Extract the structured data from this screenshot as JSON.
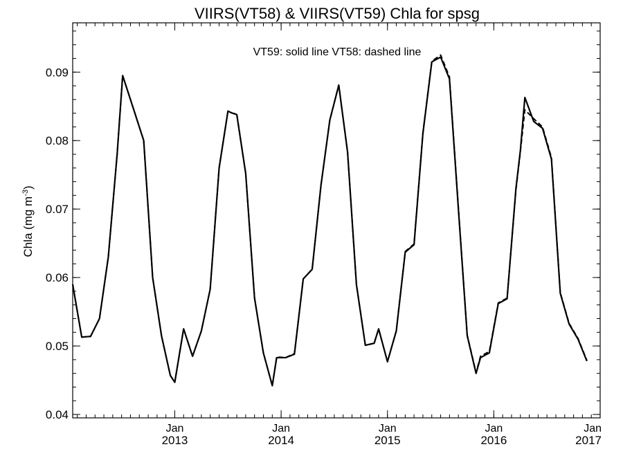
{
  "chart_data": {
    "type": "line",
    "title": "VIIRS(VT58) & VIIRS(VT59)  Chla for spsg",
    "annotation": "VT59: solid line   VT58: dashed line",
    "ylabel": {
      "base": "Chla (mg m",
      "sup": "-3",
      "close": ")"
    },
    "xlabel": "",
    "xlim": [
      2012.04,
      2017.0
    ],
    "ylim": [
      0.0395,
      0.0972
    ],
    "y_ticks": [
      0.04,
      0.05,
      0.06,
      0.07,
      0.08,
      0.09
    ],
    "y_tick_labels": [
      "0.04",
      "0.05",
      "0.06",
      "0.07",
      "0.08",
      "0.09"
    ],
    "y_minor_step": 0.002,
    "x_ticks": [
      {
        "x": 2013.0,
        "line1": "Jan",
        "line2": "2013"
      },
      {
        "x": 2014.0,
        "line1": "Jan",
        "line2": "2014"
      },
      {
        "x": 2015.0,
        "line1": "Jan",
        "line2": "2015"
      },
      {
        "x": 2016.0,
        "line1": "Jan",
        "line2": "2016"
      },
      {
        "x": 2017.0,
        "line1": "Jan",
        "line2": "2017"
      }
    ],
    "x_minor_step": 0.0833333,
    "grid": false,
    "series": [
      {
        "name": "VT59",
        "style": "solid",
        "color": "#000000",
        "points": [
          [
            2012.04,
            0.059
          ],
          [
            2012.125,
            0.0513
          ],
          [
            2012.208,
            0.0514
          ],
          [
            2012.292,
            0.054
          ],
          [
            2012.375,
            0.063
          ],
          [
            2012.458,
            0.078
          ],
          [
            2012.51,
            0.0895
          ],
          [
            2012.625,
            0.084
          ],
          [
            2012.708,
            0.08
          ],
          [
            2012.792,
            0.06
          ],
          [
            2012.875,
            0.0515
          ],
          [
            2012.958,
            0.0457
          ],
          [
            2013.0,
            0.0447
          ],
          [
            2013.083,
            0.0525
          ],
          [
            2013.167,
            0.0485
          ],
          [
            2013.25,
            0.0522
          ],
          [
            2013.333,
            0.0583
          ],
          [
            2013.417,
            0.076
          ],
          [
            2013.5,
            0.0843
          ],
          [
            2013.542,
            0.084
          ],
          [
            2013.583,
            0.0838
          ],
          [
            2013.667,
            0.0752
          ],
          [
            2013.75,
            0.057
          ],
          [
            2013.833,
            0.049
          ],
          [
            2013.917,
            0.0442
          ],
          [
            2013.958,
            0.0483
          ],
          [
            2014.042,
            0.0483
          ],
          [
            2014.125,
            0.0488
          ],
          [
            2014.208,
            0.0598
          ],
          [
            2014.292,
            0.0612
          ],
          [
            2014.375,
            0.0735
          ],
          [
            2014.458,
            0.083
          ],
          [
            2014.542,
            0.0881
          ],
          [
            2014.625,
            0.0783
          ],
          [
            2014.708,
            0.059
          ],
          [
            2014.792,
            0.0501
          ],
          [
            2014.875,
            0.0504
          ],
          [
            2014.917,
            0.0525
          ],
          [
            2015.0,
            0.0477
          ],
          [
            2015.083,
            0.0522
          ],
          [
            2015.167,
            0.0637
          ],
          [
            2015.25,
            0.0648
          ],
          [
            2015.333,
            0.081
          ],
          [
            2015.417,
            0.0915
          ],
          [
            2015.5,
            0.0922
          ],
          [
            2015.583,
            0.089
          ],
          [
            2015.667,
            0.07
          ],
          [
            2015.75,
            0.0515
          ],
          [
            2015.833,
            0.046
          ],
          [
            2015.875,
            0.0483
          ],
          [
            2015.958,
            0.049
          ],
          [
            2016.042,
            0.0562
          ],
          [
            2016.125,
            0.0569
          ],
          [
            2016.208,
            0.073
          ],
          [
            2016.25,
            0.0786
          ],
          [
            2016.292,
            0.0863
          ],
          [
            2016.375,
            0.0828
          ],
          [
            2016.458,
            0.0818
          ],
          [
            2016.542,
            0.0773
          ],
          [
            2016.625,
            0.0577
          ],
          [
            2016.708,
            0.0532
          ],
          [
            2016.792,
            0.051
          ],
          [
            2016.875,
            0.0478
          ]
        ]
      },
      {
        "name": "VT58",
        "style": "dashed",
        "color": "#000000",
        "points": [
          [
            2012.04,
            0.059
          ],
          [
            2012.125,
            0.0513
          ],
          [
            2012.208,
            0.0514
          ],
          [
            2012.292,
            0.054
          ],
          [
            2012.375,
            0.063
          ],
          [
            2012.458,
            0.078
          ],
          [
            2012.51,
            0.0895
          ],
          [
            2012.625,
            0.084
          ],
          [
            2012.708,
            0.08
          ],
          [
            2012.792,
            0.06
          ],
          [
            2012.875,
            0.0515
          ],
          [
            2012.958,
            0.0457
          ],
          [
            2013.0,
            0.0447
          ],
          [
            2013.083,
            0.0525
          ],
          [
            2013.167,
            0.0485
          ],
          [
            2013.25,
            0.0522
          ],
          [
            2013.333,
            0.0583
          ],
          [
            2013.417,
            0.076
          ],
          [
            2013.5,
            0.0843
          ],
          [
            2013.542,
            0.084
          ],
          [
            2013.583,
            0.0839
          ],
          [
            2013.667,
            0.0752
          ],
          [
            2013.75,
            0.057
          ],
          [
            2013.833,
            0.049
          ],
          [
            2013.917,
            0.0442
          ],
          [
            2013.958,
            0.0484
          ],
          [
            2014.042,
            0.0483
          ],
          [
            2014.125,
            0.0489
          ],
          [
            2014.208,
            0.0598
          ],
          [
            2014.292,
            0.0612
          ],
          [
            2014.375,
            0.0735
          ],
          [
            2014.458,
            0.083
          ],
          [
            2014.542,
            0.0881
          ],
          [
            2014.625,
            0.0783
          ],
          [
            2014.708,
            0.059
          ],
          [
            2014.792,
            0.0501
          ],
          [
            2014.875,
            0.0504
          ],
          [
            2014.917,
            0.0525
          ],
          [
            2015.0,
            0.0477
          ],
          [
            2015.083,
            0.0522
          ],
          [
            2015.167,
            0.0638
          ],
          [
            2015.25,
            0.0649
          ],
          [
            2015.333,
            0.0811
          ],
          [
            2015.417,
            0.0916
          ],
          [
            2015.5,
            0.0925
          ],
          [
            2015.583,
            0.0893
          ],
          [
            2015.667,
            0.0702
          ],
          [
            2015.75,
            0.0516
          ],
          [
            2015.833,
            0.0461
          ],
          [
            2015.875,
            0.0485
          ],
          [
            2015.958,
            0.0492
          ],
          [
            2016.042,
            0.0563
          ],
          [
            2016.125,
            0.057
          ],
          [
            2016.208,
            0.0728
          ],
          [
            2016.25,
            0.0784
          ],
          [
            2016.292,
            0.0845
          ],
          [
            2016.375,
            0.0832
          ],
          [
            2016.458,
            0.082
          ],
          [
            2016.542,
            0.0775
          ],
          [
            2016.625,
            0.0578
          ],
          [
            2016.708,
            0.0533
          ],
          [
            2016.792,
            0.0511
          ],
          [
            2016.875,
            0.0479
          ]
        ]
      }
    ]
  }
}
